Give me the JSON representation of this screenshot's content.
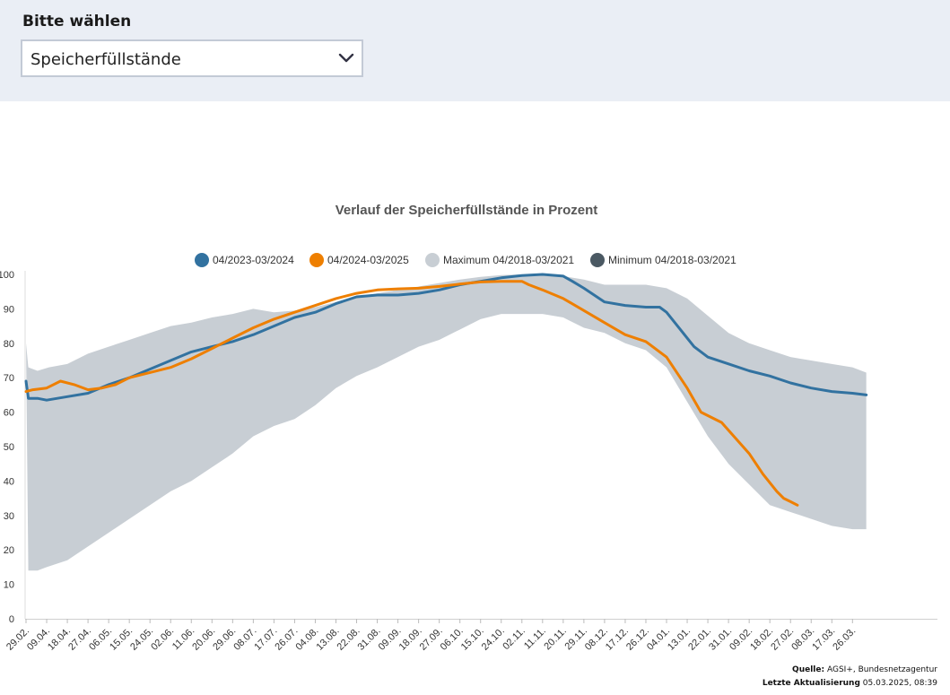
{
  "selector": {
    "label": "Bitte wählen",
    "value": "Speicherfüllstände"
  },
  "source": {
    "source_label": "Quelle:",
    "source_value": "AGSI+, Bundesnetzagentur",
    "updated_label": "Letzte Aktualisierung",
    "updated_value": "05.03.2025, 08:39"
  },
  "chart_data": {
    "type": "area",
    "title": "Verlauf der Speicherfüllstände in Prozent",
    "xlabel": "",
    "ylabel": "",
    "ylim": [
      0,
      100
    ],
    "yticks": [
      0,
      10,
      20,
      30,
      40,
      50,
      60,
      70,
      80,
      90,
      100
    ],
    "x_range_days": [
      0,
      397
    ],
    "x_unit": "days since 29.02.",
    "x_ticks": [
      {
        "day": 0,
        "label": "29.02."
      },
      {
        "day": 9,
        "label": "09.04."
      },
      {
        "day": 18,
        "label": "18.04."
      },
      {
        "day": 27,
        "label": "27.04."
      },
      {
        "day": 36,
        "label": "06.05."
      },
      {
        "day": 45,
        "label": "15.05."
      },
      {
        "day": 54,
        "label": "24.05."
      },
      {
        "day": 63,
        "label": "02.06."
      },
      {
        "day": 72,
        "label": "11.06."
      },
      {
        "day": 81,
        "label": "20.06."
      },
      {
        "day": 90,
        "label": "29.06."
      },
      {
        "day": 99,
        "label": "08.07."
      },
      {
        "day": 108,
        "label": "17.07."
      },
      {
        "day": 117,
        "label": "26.07."
      },
      {
        "day": 126,
        "label": "04.08."
      },
      {
        "day": 135,
        "label": "13.08."
      },
      {
        "day": 144,
        "label": "22.08."
      },
      {
        "day": 153,
        "label": "31.08."
      },
      {
        "day": 162,
        "label": "09.09."
      },
      {
        "day": 171,
        "label": "18.09."
      },
      {
        "day": 180,
        "label": "27.09."
      },
      {
        "day": 189,
        "label": "06.10."
      },
      {
        "day": 198,
        "label": "15.10."
      },
      {
        "day": 207,
        "label": "24.10."
      },
      {
        "day": 216,
        "label": "02.11."
      },
      {
        "day": 225,
        "label": "11.11."
      },
      {
        "day": 234,
        "label": "20.11."
      },
      {
        "day": 243,
        "label": "29.11."
      },
      {
        "day": 252,
        "label": "08.12."
      },
      {
        "day": 261,
        "label": "17.12."
      },
      {
        "day": 270,
        "label": "26.12."
      },
      {
        "day": 279,
        "label": "04.01."
      },
      {
        "day": 288,
        "label": "13.01."
      },
      {
        "day": 297,
        "label": "22.01."
      },
      {
        "day": 306,
        "label": "31.01."
      },
      {
        "day": 315,
        "label": "09.02."
      },
      {
        "day": 324,
        "label": "18.02."
      },
      {
        "day": 333,
        "label": "27.02."
      },
      {
        "day": 342,
        "label": "08.03."
      },
      {
        "day": 351,
        "label": "17.03."
      },
      {
        "day": 360,
        "label": "26.03."
      }
    ],
    "legend": [
      {
        "name": "04/2023-03/2024",
        "color": "#3272a0"
      },
      {
        "name": "04/2024-03/2025",
        "color": "#ee7f00"
      },
      {
        "name": "Maximum 04/2018-03/2021",
        "color": "#c8ced4"
      },
      {
        "name": "Minimum 04/2018-03/2021",
        "color": "#4b5963"
      }
    ],
    "band_color": "#c8ced4",
    "band_max": [
      [
        0,
        80
      ],
      [
        1,
        73
      ],
      [
        5,
        72
      ],
      [
        10,
        73
      ],
      [
        18,
        74
      ],
      [
        27,
        77
      ],
      [
        36,
        79
      ],
      [
        45,
        81
      ],
      [
        54,
        83
      ],
      [
        63,
        85
      ],
      [
        72,
        86
      ],
      [
        81,
        87.5
      ],
      [
        90,
        88.5
      ],
      [
        99,
        90
      ],
      [
        108,
        89
      ],
      [
        117,
        89.5
      ],
      [
        126,
        90.5
      ],
      [
        135,
        92
      ],
      [
        144,
        93.5
      ],
      [
        153,
        94.5
      ],
      [
        162,
        95.5
      ],
      [
        171,
        96.5
      ],
      [
        180,
        97.5
      ],
      [
        189,
        98.5
      ],
      [
        198,
        99.3
      ],
      [
        207,
        99.8
      ],
      [
        216,
        100
      ],
      [
        225,
        100
      ],
      [
        234,
        99.5
      ],
      [
        243,
        98.5
      ],
      [
        252,
        97
      ],
      [
        261,
        97
      ],
      [
        270,
        97
      ],
      [
        279,
        96
      ],
      [
        288,
        93
      ],
      [
        297,
        88
      ],
      [
        306,
        83
      ],
      [
        315,
        80
      ],
      [
        324,
        78
      ],
      [
        333,
        76
      ],
      [
        342,
        75
      ],
      [
        351,
        74
      ],
      [
        360,
        73
      ],
      [
        366,
        71.5
      ],
      [
        366,
        71
      ]
    ],
    "band_min": [
      [
        0,
        80
      ],
      [
        1,
        14
      ],
      [
        5,
        14
      ],
      [
        9,
        15
      ],
      [
        18,
        17
      ],
      [
        27,
        21
      ],
      [
        36,
        25
      ],
      [
        45,
        29
      ],
      [
        54,
        33
      ],
      [
        63,
        37
      ],
      [
        72,
        40
      ],
      [
        81,
        44
      ],
      [
        90,
        48
      ],
      [
        99,
        53
      ],
      [
        108,
        56
      ],
      [
        117,
        58
      ],
      [
        126,
        62
      ],
      [
        135,
        67
      ],
      [
        144,
        70.5
      ],
      [
        153,
        73
      ],
      [
        162,
        76
      ],
      [
        171,
        79
      ],
      [
        180,
        81
      ],
      [
        189,
        84
      ],
      [
        198,
        87
      ],
      [
        207,
        88.5
      ],
      [
        216,
        88.5
      ],
      [
        225,
        88.5
      ],
      [
        234,
        87.5
      ],
      [
        243,
        84.5
      ],
      [
        252,
        83
      ],
      [
        261,
        80
      ],
      [
        270,
        78
      ],
      [
        279,
        73
      ],
      [
        288,
        63
      ],
      [
        297,
        53
      ],
      [
        306,
        45
      ],
      [
        315,
        39
      ],
      [
        324,
        33
      ],
      [
        333,
        31
      ],
      [
        342,
        29
      ],
      [
        351,
        27
      ],
      [
        360,
        26
      ],
      [
        366,
        26
      ]
    ],
    "series": [
      {
        "name": "04/2023-03/2024",
        "color": "#3272a0",
        "values": [
          [
            0,
            69
          ],
          [
            1,
            64
          ],
          [
            5,
            64
          ],
          [
            9,
            63.5
          ],
          [
            18,
            64.5
          ],
          [
            27,
            65.5
          ],
          [
            36,
            68
          ],
          [
            45,
            70
          ],
          [
            54,
            72.5
          ],
          [
            63,
            75
          ],
          [
            72,
            77.5
          ],
          [
            81,
            79
          ],
          [
            90,
            80.5
          ],
          [
            99,
            82.5
          ],
          [
            108,
            85
          ],
          [
            117,
            87.5
          ],
          [
            126,
            89
          ],
          [
            135,
            91.5
          ],
          [
            144,
            93.5
          ],
          [
            153,
            94
          ],
          [
            162,
            94
          ],
          [
            171,
            94.5
          ],
          [
            180,
            95.5
          ],
          [
            189,
            97
          ],
          [
            198,
            98
          ],
          [
            207,
            99
          ],
          [
            216,
            99.7
          ],
          [
            225,
            100
          ],
          [
            234,
            99.5
          ],
          [
            238,
            98
          ],
          [
            243,
            96
          ],
          [
            252,
            92
          ],
          [
            261,
            91
          ],
          [
            270,
            90.5
          ],
          [
            276,
            90.5
          ],
          [
            279,
            89
          ],
          [
            285,
            84
          ],
          [
            291,
            79
          ],
          [
            297,
            76
          ],
          [
            306,
            74
          ],
          [
            315,
            72
          ],
          [
            324,
            70.5
          ],
          [
            333,
            68.5
          ],
          [
            342,
            67
          ],
          [
            351,
            66
          ],
          [
            360,
            65.5
          ],
          [
            366,
            65
          ]
        ]
      },
      {
        "name": "04/2024-03/2025",
        "color": "#ee7f00",
        "values": [
          [
            0,
            66
          ],
          [
            3,
            66.5
          ],
          [
            9,
            67
          ],
          [
            15,
            69
          ],
          [
            21,
            68
          ],
          [
            27,
            66.5
          ],
          [
            33,
            67
          ],
          [
            39,
            68
          ],
          [
            45,
            70
          ],
          [
            54,
            71.5
          ],
          [
            63,
            73
          ],
          [
            72,
            75.5
          ],
          [
            81,
            78.5
          ],
          [
            90,
            81.5
          ],
          [
            99,
            84.5
          ],
          [
            108,
            87
          ],
          [
            117,
            89
          ],
          [
            126,
            91
          ],
          [
            135,
            93
          ],
          [
            144,
            94.5
          ],
          [
            153,
            95.5
          ],
          [
            162,
            95.8
          ],
          [
            171,
            96
          ],
          [
            180,
            96.5
          ],
          [
            189,
            97.2
          ],
          [
            198,
            97.8
          ],
          [
            207,
            98
          ],
          [
            216,
            98
          ],
          [
            219,
            97
          ],
          [
            225,
            95.5
          ],
          [
            234,
            93
          ],
          [
            243,
            89.5
          ],
          [
            252,
            86
          ],
          [
            261,
            82.5
          ],
          [
            270,
            80.5
          ],
          [
            279,
            76
          ],
          [
            288,
            67
          ],
          [
            294,
            60
          ],
          [
            303,
            57
          ],
          [
            315,
            48
          ],
          [
            321,
            42
          ],
          [
            327,
            37
          ],
          [
            330,
            35
          ],
          [
            333,
            34
          ],
          [
            336,
            33
          ]
        ]
      }
    ]
  }
}
